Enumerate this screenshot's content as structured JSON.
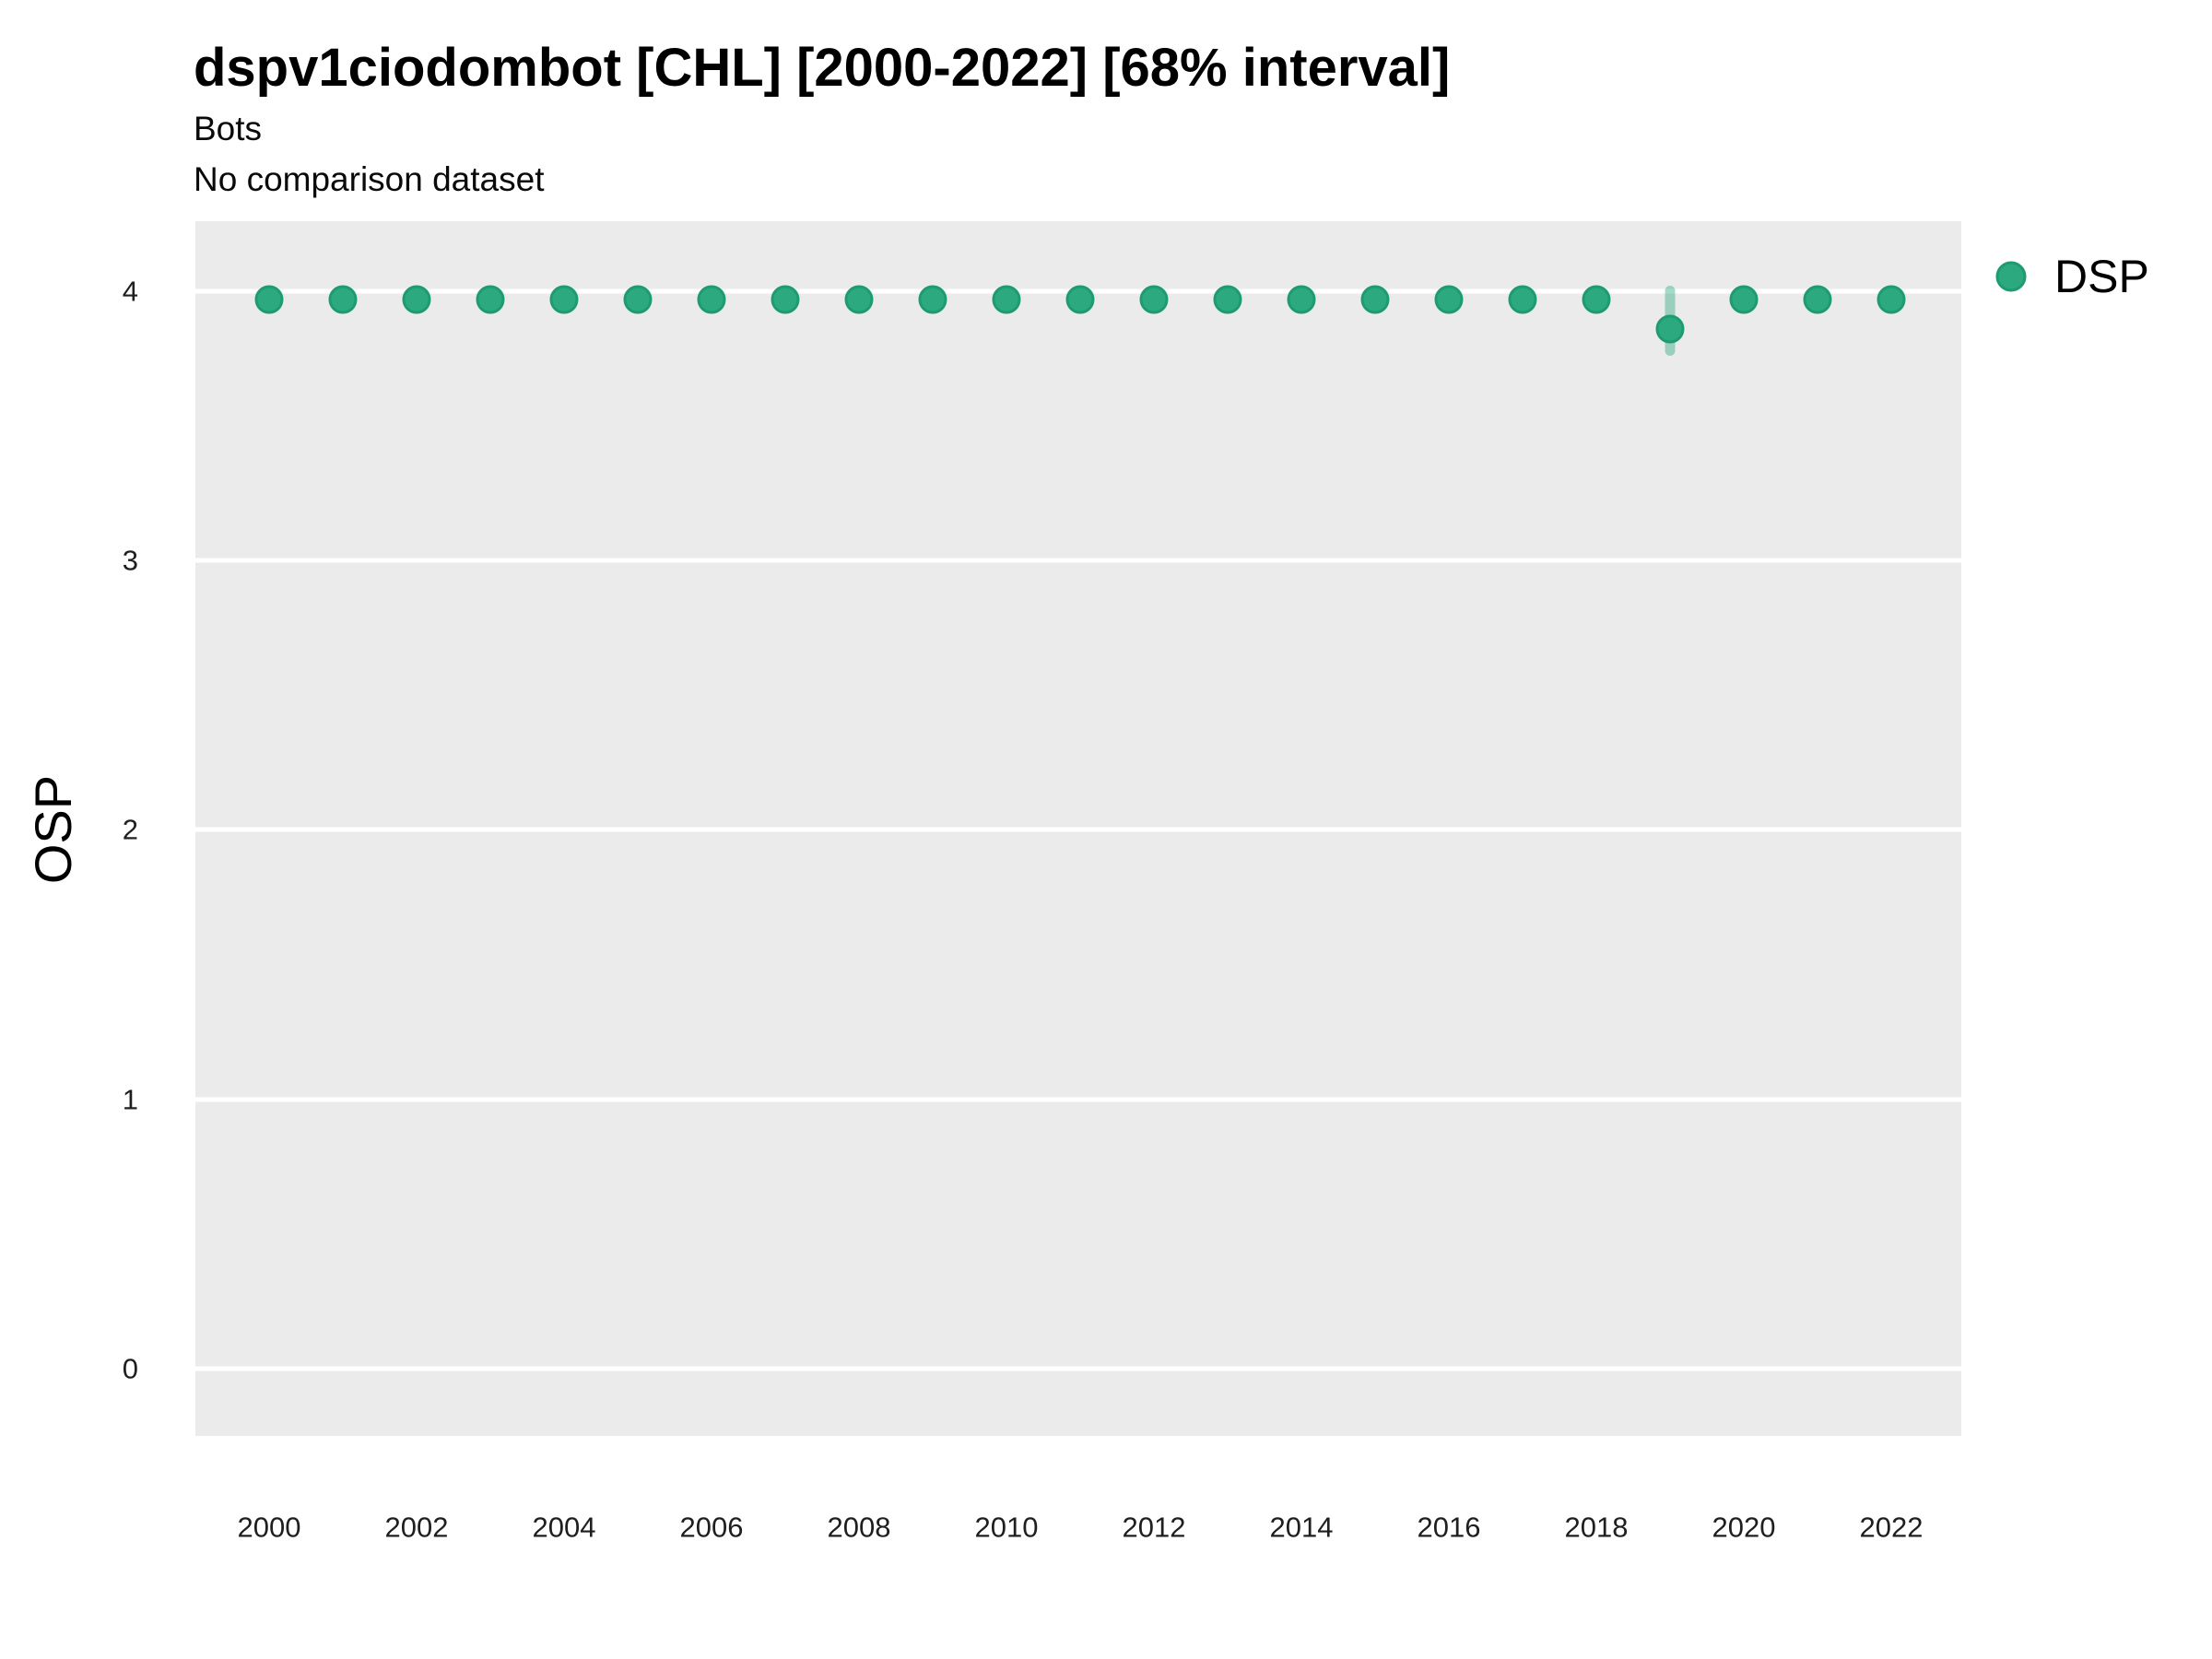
{
  "header": {
    "title": "dspv1ciodombot [CHL] [2000-2022] [68% interval]",
    "subtitle": "Bots",
    "note": "No comparison dataset"
  },
  "legend": {
    "items": [
      {
        "label": "DSP",
        "color": "#2CA97E"
      }
    ]
  },
  "colors": {
    "panel_background": "#EBEBEB",
    "gridline": "#FFFFFF",
    "point_fill": "#2CA97E",
    "point_stroke": "#1E9B70",
    "interval_bar": "rgba(44,169,126,0.42)",
    "text": "#000000"
  },
  "chart_data": {
    "type": "scatter",
    "title": "dspv1ciodombot [CHL] [2000-2022] [68% interval]",
    "subtitle": "Bots",
    "note": "No comparison dataset",
    "xlabel": "",
    "ylabel": "OSP",
    "xlim": [
      1999,
      2022.95
    ],
    "ylim": [
      -0.25,
      4.26
    ],
    "x_ticks": [
      2000,
      2002,
      2004,
      2006,
      2008,
      2010,
      2012,
      2014,
      2016,
      2018,
      2020,
      2022
    ],
    "y_ticks": [
      0,
      1,
      2,
      3,
      4
    ],
    "grid": "major horizontal white lines on gray panel, no minor grid, no axis lines or tick marks",
    "legend_position": "right-top",
    "interval_level": "68%",
    "series": [
      {
        "name": "DSP",
        "points": [
          {
            "x": 2000,
            "y": 3.97,
            "lo": 3.97,
            "hi": 3.97
          },
          {
            "x": 2001,
            "y": 3.97,
            "lo": 3.97,
            "hi": 3.97
          },
          {
            "x": 2002,
            "y": 3.97,
            "lo": 3.97,
            "hi": 3.97
          },
          {
            "x": 2003,
            "y": 3.97,
            "lo": 3.97,
            "hi": 3.97
          },
          {
            "x": 2004,
            "y": 3.97,
            "lo": 3.97,
            "hi": 3.97
          },
          {
            "x": 2005,
            "y": 3.97,
            "lo": 3.97,
            "hi": 3.97
          },
          {
            "x": 2006,
            "y": 3.97,
            "lo": 3.97,
            "hi": 3.97
          },
          {
            "x": 2007,
            "y": 3.97,
            "lo": 3.97,
            "hi": 3.97
          },
          {
            "x": 2008,
            "y": 3.97,
            "lo": 3.97,
            "hi": 3.97
          },
          {
            "x": 2009,
            "y": 3.97,
            "lo": 3.97,
            "hi": 3.97
          },
          {
            "x": 2010,
            "y": 3.97,
            "lo": 3.97,
            "hi": 3.97
          },
          {
            "x": 2011,
            "y": 3.97,
            "lo": 3.97,
            "hi": 3.97
          },
          {
            "x": 2012,
            "y": 3.97,
            "lo": 3.97,
            "hi": 3.97
          },
          {
            "x": 2013,
            "y": 3.97,
            "lo": 3.97,
            "hi": 3.97
          },
          {
            "x": 2014,
            "y": 3.97,
            "lo": 3.97,
            "hi": 3.97
          },
          {
            "x": 2015,
            "y": 3.97,
            "lo": 3.97,
            "hi": 3.97
          },
          {
            "x": 2016,
            "y": 3.97,
            "lo": 3.97,
            "hi": 3.97
          },
          {
            "x": 2017,
            "y": 3.97,
            "lo": 3.97,
            "hi": 3.97
          },
          {
            "x": 2018,
            "y": 3.97,
            "lo": 3.97,
            "hi": 3.97
          },
          {
            "x": 2019,
            "y": 3.86,
            "lo": 3.76,
            "hi": 4.02
          },
          {
            "x": 2020,
            "y": 3.97,
            "lo": 3.97,
            "hi": 3.97
          },
          {
            "x": 2021,
            "y": 3.97,
            "lo": 3.97,
            "hi": 3.97
          },
          {
            "x": 2022,
            "y": 3.97,
            "lo": 3.97,
            "hi": 3.97
          }
        ]
      }
    ]
  }
}
